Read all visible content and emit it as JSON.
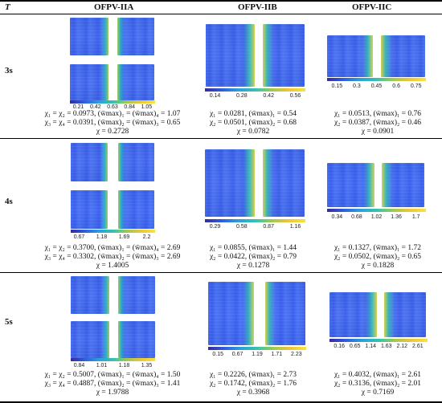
{
  "header": {
    "t_label": "T",
    "col_a": "OFPV-IIA",
    "col_b": "OFPV-IIB",
    "col_c": "OFPV-IIC"
  },
  "rows": [
    {
      "t": "3s",
      "a": {
        "ticks": [
          "0.21",
          "0.42",
          "0.63",
          "0.84",
          "1.05"
        ],
        "line1": "χ₁ = χ₂ = 0.0973, (w̄max)₁ = (w̄max)₄ = 1.07",
        "line2": "χ₃ = χ₄ = 0.0391, (w̄max)₂ = (w̄max)₃ = 0.65",
        "line3": "χ = 0.2728"
      },
      "b": {
        "ticks": [
          "0.14",
          "0.28",
          "0.42",
          "0.56"
        ],
        "line1": "χ₁ = 0.0281, (w̄max)₁ = 0.54",
        "line2": "χ₂ = 0.0501, (w̄max)₂ = 0.68",
        "line3": "χ = 0.0782"
      },
      "c": {
        "ticks": [
          "0.15",
          "0.3",
          "0.45",
          "0.6",
          "0.75"
        ],
        "line1": "χ₁ = 0.0513, (w̄max)₁ = 0.76",
        "line2": "χ₂ = 0.0387, (w̄max)₂ = 0.46",
        "line3": "χ = 0.0901"
      }
    },
    {
      "t": "4s",
      "a": {
        "ticks": [
          "0.67",
          "1.18",
          "1.69",
          "2.2"
        ],
        "line1": "χ₁ = χ₂ = 0.3700, (w̄max)₁ = (w̄max)₄ = 2.69",
        "line2": "χ₃ = χ₄ = 0.3302, (w̄max)₂ = (w̄max)₃ = 2.69",
        "line3": "χ = 1.4005"
      },
      "b": {
        "ticks": [
          "0.29",
          "0.58",
          "0.87",
          "1.16"
        ],
        "line1": "χ₁ = 0.0855, (w̄max)₁ = 1.44",
        "line2": "χ₂ = 0.0422, (w̄max)₂ = 0.79",
        "line3": "χ = 0.1278"
      },
      "c": {
        "ticks": [
          "0.34",
          "0.68",
          "1.02",
          "1.36",
          "1.7"
        ],
        "line1": "χ₁ = 0.1327, (w̄max)₁ = 1.72",
        "line2": "χ₂ = 0.0502, (w̄max)₂ = 0.65",
        "line3": "χ = 0.1828"
      }
    },
    {
      "t": "5s",
      "a": {
        "ticks": [
          "0.84",
          "1.01",
          "1.18",
          "1.35"
        ],
        "line1": "χ₁ = χ₂ = 0.5007, (w̄max)₁ = (w̄max)₄ = 1.50",
        "line2": "χ₃ = χ₄ = 0.4887, (w̄max)₂ = (w̄max)₃ = 1.41",
        "line3": "χ = 1.9788"
      },
      "b": {
        "ticks": [
          "0.15",
          "0.67",
          "1.19",
          "1.71",
          "2.23"
        ],
        "line1": "χ₁ = 0.2226, (w̄max)₁ = 2.73",
        "line2": "χ₂ = 0.1742, (w̄max)₂ = 1.76",
        "line3": "χ = 0.3968"
      },
      "c": {
        "ticks": [
          "0.16",
          "0.65",
          "1.14",
          "1.63",
          "2.12",
          "2.61"
        ],
        "line1": "χ₁ = 0.4032, (w̄max)₁ = 2.61",
        "line2": "χ₂ = 0.3136, (w̄max)₂ = 2.01",
        "line3": "χ = 0.7169"
      }
    }
  ]
}
